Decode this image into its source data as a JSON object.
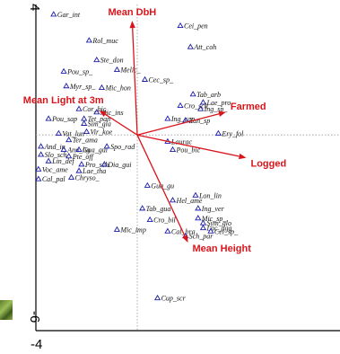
{
  "chart_data": {
    "type": "scatter",
    "title": "",
    "xlabel": "",
    "ylabel": "",
    "xlim": [
      -4,
      8
    ],
    "ylim": [
      -6,
      4
    ],
    "corner_labels": {
      "y_top": "4",
      "y_bottom": "-6",
      "x_left": "-4"
    },
    "origin_lines": true,
    "colors": {
      "points": "#1a1aa8",
      "vectors": "#d9141b",
      "frame": "#000000"
    },
    "points": [
      {
        "label": "Gar_int",
        "x": -3.3,
        "y": 3.7
      },
      {
        "label": "Rol_muc",
        "x": -1.9,
        "y": 2.9
      },
      {
        "label": "Ste_don",
        "x": -1.6,
        "y": 2.3
      },
      {
        "label": "Melic_",
        "x": -0.8,
        "y": 2.0
      },
      {
        "label": "Pou_sp_",
        "x": -2.9,
        "y": 1.95
      },
      {
        "label": "Myr_sp_",
        "x": -2.8,
        "y": 1.5
      },
      {
        "label": "Mic_hon",
        "x": -1.4,
        "y": 1.45
      },
      {
        "label": "Cor_bic",
        "x": -2.3,
        "y": 0.8
      },
      {
        "label": "Mic_ins",
        "x": -1.6,
        "y": 0.7
      },
      {
        "label": "Tet_pan",
        "x": -2.1,
        "y": 0.5
      },
      {
        "label": "Sim_gla",
        "x": -2.1,
        "y": 0.35
      },
      {
        "label": "Pou_sap",
        "x": -3.5,
        "y": 0.5
      },
      {
        "label": "Vat_lun",
        "x": -3.1,
        "y": 0.05
      },
      {
        "label": "Vir_koe",
        "x": -2.0,
        "y": 0.1
      },
      {
        "label": "Ter_ama",
        "x": -2.7,
        "y": -0.15
      },
      {
        "label": "And_in",
        "x": -3.8,
        "y": -0.35
      },
      {
        "label": "Ann_lig",
        "x": -2.9,
        "y": -0.45
      },
      {
        "label": "Gua_gui",
        "x": -2.3,
        "y": -0.45
      },
      {
        "label": "Spo_rad",
        "x": -1.2,
        "y": -0.35
      },
      {
        "label": "Slo_sch",
        "x": -3.8,
        "y": -0.6
      },
      {
        "label": "Pte_off",
        "x": -2.7,
        "y": -0.65
      },
      {
        "label": "Lin_def",
        "x": -3.5,
        "y": -0.8
      },
      {
        "label": "Voc_ame",
        "x": -3.9,
        "y": -1.05
      },
      {
        "label": "Pro_sch",
        "x": -2.2,
        "y": -0.9
      },
      {
        "label": "Dia_gui",
        "x": -1.3,
        "y": -0.9
      },
      {
        "label": "Lae_tha",
        "x": -2.3,
        "y": -1.1
      },
      {
        "label": "Cal_pal",
        "x": -3.9,
        "y": -1.35
      },
      {
        "label": "Chryso_",
        "x": -2.6,
        "y": -1.3
      },
      {
        "label": "Mic_imp",
        "x": -0.8,
        "y": -2.9
      },
      {
        "label": "Cei_pen",
        "x": 1.7,
        "y": 3.35
      },
      {
        "label": "Att_coh",
        "x": 2.1,
        "y": 2.7
      },
      {
        "label": "Cec_sp_",
        "x": 0.3,
        "y": 1.7
      },
      {
        "label": "Tab_arb",
        "x": 2.2,
        "y": 1.25
      },
      {
        "label": "Lae_pro",
        "x": 2.6,
        "y": 1.0
      },
      {
        "label": "Cro_sch",
        "x": 1.7,
        "y": 0.9
      },
      {
        "label": "Ing_sp_",
        "x": 2.5,
        "y": 0.8
      },
      {
        "label": "Ing_cap",
        "x": 1.2,
        "y": 0.5
      },
      {
        "label": "Zan_sp",
        "x": 1.9,
        "y": 0.45
      },
      {
        "label": "Ery_fol",
        "x": 3.2,
        "y": 0.05
      },
      {
        "label": "Laurac",
        "x": 1.2,
        "y": -0.2
      },
      {
        "label": "Pou_bic",
        "x": 1.4,
        "y": -0.45
      },
      {
        "label": "Gua_gu",
        "x": 0.4,
        "y": -1.55
      },
      {
        "label": "Lon_lin",
        "x": 2.3,
        "y": -1.85
      },
      {
        "label": "Hel_ame",
        "x": 1.4,
        "y": -2.0
      },
      {
        "label": "Ing_ver",
        "x": 2.4,
        "y": -2.25
      },
      {
        "label": "Tab_gua",
        "x": 0.2,
        "y": -2.25
      },
      {
        "label": "Mic_sp_",
        "x": 2.4,
        "y": -2.55
      },
      {
        "label": "Sym_glo",
        "x": 2.6,
        "y": -2.7
      },
      {
        "label": "Cro_bil",
        "x": 0.5,
        "y": -2.6
      },
      {
        "label": "Lac_agg",
        "x": 2.6,
        "y": -2.85
      },
      {
        "label": "Cal_bra",
        "x": 1.2,
        "y": -2.95
      },
      {
        "label": "Cei_sp_",
        "x": 2.9,
        "y": -2.95
      },
      {
        "label": "Sch_par",
        "x": 1.9,
        "y": -3.1
      },
      {
        "label": "Cup_scr",
        "x": 0.8,
        "y": -5.0
      }
    ],
    "vectors": [
      {
        "name": "Mean DbH",
        "x": -0.2,
        "y": 3.5
      },
      {
        "name": "Mean Light at 3m",
        "x": -1.5,
        "y": 0.75
      },
      {
        "name": "Farmed",
        "x": 3.5,
        "y": 0.7
      },
      {
        "name": "Logged",
        "x": 4.3,
        "y": -0.7
      },
      {
        "name": "Mean Height",
        "x": 2.0,
        "y": -3.3
      }
    ]
  }
}
